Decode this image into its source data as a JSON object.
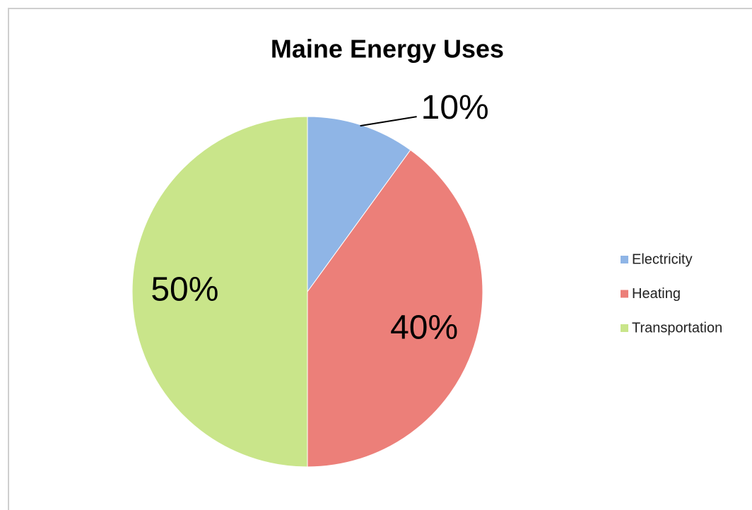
{
  "chart_data": {
    "type": "pie",
    "title": "Maine Energy Uses",
    "categories": [
      "Electricity",
      "Heating",
      "Transportation"
    ],
    "values": [
      10,
      40,
      50
    ],
    "value_labels": [
      "10%",
      "40%",
      "50%"
    ],
    "colors": [
      "#8fb5e6",
      "#ec7f79",
      "#c9e58a"
    ],
    "legend": "right"
  }
}
